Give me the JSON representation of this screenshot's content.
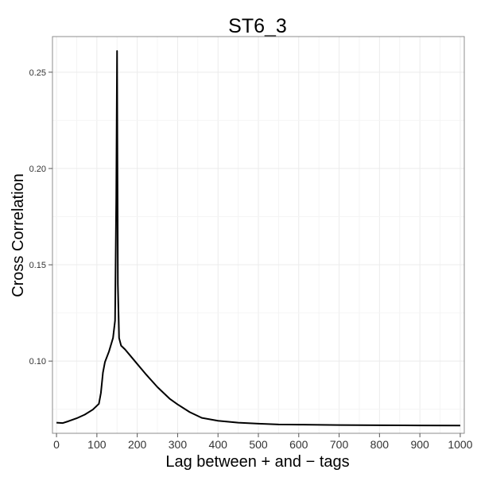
{
  "chart_data": {
    "type": "line",
    "title": "ST6_3",
    "xlabel": "Lag between + and − tags",
    "ylabel": "Cross Correlation",
    "xlim": [
      -10,
      1010
    ],
    "ylim": [
      0.0625,
      0.2685
    ],
    "x_ticks": [
      0,
      100,
      200,
      300,
      400,
      500,
      600,
      700,
      800,
      900,
      1000
    ],
    "x_tick_labels": [
      "0",
      "100",
      "200",
      "300",
      "400",
      "500",
      "600",
      "700",
      "800",
      "900",
      "1000"
    ],
    "y_ticks": [
      0.1,
      0.15,
      0.2,
      0.25
    ],
    "y_tick_labels": [
      "0.10",
      "0.15",
      "0.20",
      "0.25"
    ],
    "grid": true,
    "legend": "none",
    "line_color": "#000000",
    "grid_color": "#ebebeb",
    "series": [
      {
        "x": [
          0,
          15,
          30,
          50,
          70,
          90,
          105,
          110,
          115,
          120,
          130,
          140,
          145,
          148,
          150,
          152,
          155,
          160,
          170,
          180,
          200,
          220,
          250,
          280,
          300,
          330,
          360,
          400,
          450,
          500,
          550,
          600,
          700,
          800,
          900,
          1000
        ],
        "y": [
          0.068,
          0.0678,
          0.0688,
          0.0703,
          0.0722,
          0.0748,
          0.0778,
          0.0835,
          0.094,
          0.0995,
          0.105,
          0.112,
          0.121,
          0.185,
          0.261,
          0.14,
          0.112,
          0.108,
          0.106,
          0.1035,
          0.0985,
          0.0935,
          0.0865,
          0.0805,
          0.0775,
          0.0735,
          0.0705,
          0.069,
          0.068,
          0.0675,
          0.0671,
          0.067,
          0.0668,
          0.0667,
          0.0666,
          0.0665
        ]
      }
    ]
  }
}
